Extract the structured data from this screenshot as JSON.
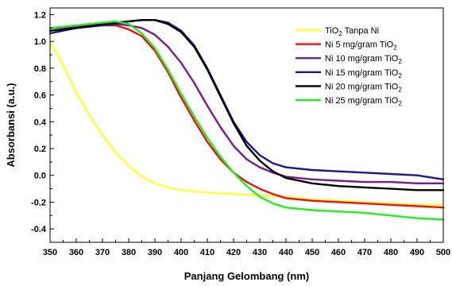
{
  "chart_data": {
    "type": "line",
    "title": "",
    "xlabel": "Panjang Gelombang (nm)",
    "ylabel": "Absorbansi (a.u.)",
    "xlim": [
      350,
      500
    ],
    "ylim": [
      -0.5,
      1.25
    ],
    "x_ticks": [
      350,
      360,
      370,
      380,
      390,
      400,
      410,
      420,
      430,
      440,
      450,
      460,
      470,
      480,
      490,
      500
    ],
    "y_ticks": [
      -0.4,
      -0.2,
      0.0,
      0.2,
      0.4,
      0.6,
      0.8,
      1.0,
      1.2
    ],
    "x_tick_labels": [
      "350",
      "360",
      "370",
      "380",
      "390",
      "400",
      "410",
      "420",
      "430",
      "440",
      "450",
      "460",
      "470",
      "480",
      "490",
      "500"
    ],
    "y_tick_labels": [
      "-0.4",
      "-0.2",
      "0.0",
      "0.2",
      "0.4",
      "0.6",
      "0.8",
      "1.0",
      "1.2"
    ],
    "grid": false,
    "legend_position": "top-right",
    "series": [
      {
        "name": "TiO₂ Tanpa Ni",
        "legend_main": "TiO",
        "legend_sub": "2",
        "legend_rest": " Tanpa Ni",
        "color": "#ffff33",
        "x": [
          350,
          353,
          356,
          360,
          365,
          370,
          375,
          380,
          385,
          390,
          395,
          400,
          410,
          420,
          430,
          440,
          450,
          460,
          470,
          480,
          490,
          500
        ],
        "y": [
          0.98,
          0.9,
          0.78,
          0.62,
          0.45,
          0.3,
          0.17,
          0.07,
          -0.01,
          -0.06,
          -0.09,
          -0.11,
          -0.13,
          -0.14,
          -0.15,
          -0.16,
          -0.18,
          -0.19,
          -0.2,
          -0.21,
          -0.22,
          -0.22
        ]
      },
      {
        "name": "Ni 5 mg/gram TiO₂",
        "legend_main": "Ni 5 mg/gram TiO",
        "legend_sub": "2",
        "legend_rest": "",
        "color": "#ee1111",
        "x": [
          350,
          360,
          370,
          375,
          380,
          385,
          390,
          395,
          400,
          405,
          410,
          415,
          420,
          425,
          430,
          435,
          440,
          450,
          460,
          470,
          480,
          490,
          500
        ],
        "y": [
          1.1,
          1.11,
          1.12,
          1.12,
          1.09,
          1.04,
          0.93,
          0.77,
          0.58,
          0.41,
          0.25,
          0.12,
          0.02,
          -0.05,
          -0.1,
          -0.14,
          -0.17,
          -0.19,
          -0.2,
          -0.21,
          -0.22,
          -0.23,
          -0.24
        ]
      },
      {
        "name": "Ni 10 mg/gram TiO₂",
        "legend_main": "Ni 10 mg/gram TiO",
        "legend_sub": "2",
        "legend_rest": "",
        "color": "#7a1a8c",
        "x": [
          350,
          360,
          370,
          375,
          380,
          385,
          390,
          395,
          400,
          405,
          410,
          415,
          420,
          425,
          430,
          435,
          440,
          450,
          460,
          470,
          480,
          490,
          500
        ],
        "y": [
          1.1,
          1.11,
          1.12,
          1.13,
          1.12,
          1.1,
          1.05,
          0.96,
          0.84,
          0.69,
          0.52,
          0.36,
          0.22,
          0.12,
          0.06,
          0.02,
          -0.01,
          -0.03,
          -0.04,
          -0.05,
          -0.05,
          -0.06,
          -0.06
        ]
      },
      {
        "name": "Ni 15 mg/gram TiO₂",
        "legend_main": "Ni 15 mg/gram TiO",
        "legend_sub": "2",
        "legend_rest": "",
        "color": "#1a1a8c",
        "x": [
          350,
          360,
          370,
          375,
          380,
          385,
          390,
          395,
          400,
          405,
          410,
          415,
          420,
          425,
          430,
          435,
          440,
          450,
          460,
          470,
          480,
          490,
          500
        ],
        "y": [
          1.06,
          1.1,
          1.12,
          1.13,
          1.15,
          1.16,
          1.16,
          1.14,
          1.08,
          0.97,
          0.8,
          0.6,
          0.4,
          0.25,
          0.15,
          0.09,
          0.06,
          0.04,
          0.03,
          0.02,
          0.01,
          0.0,
          -0.03
        ]
      },
      {
        "name": "Ni 20 mg/gram TiO₂",
        "legend_main": "Ni 20 mg/gram TiO",
        "legend_sub": "2",
        "legend_rest": "",
        "color": "#000000",
        "x": [
          350,
          360,
          370,
          375,
          380,
          385,
          390,
          395,
          400,
          405,
          410,
          415,
          420,
          425,
          430,
          435,
          440,
          450,
          460,
          470,
          480,
          490,
          500
        ],
        "y": [
          1.08,
          1.1,
          1.13,
          1.14,
          1.15,
          1.16,
          1.16,
          1.13,
          1.07,
          0.96,
          0.79,
          0.59,
          0.39,
          0.22,
          0.11,
          0.03,
          -0.02,
          -0.06,
          -0.08,
          -0.09,
          -0.1,
          -0.11,
          -0.11
        ]
      },
      {
        "name": "Ni 25 mg/gram TiO₂",
        "legend_main": "Ni 25 mg/gram TiO",
        "legend_sub": "2",
        "legend_rest": "",
        "color": "#22ee22",
        "x": [
          350,
          360,
          370,
          375,
          380,
          385,
          390,
          395,
          400,
          405,
          410,
          415,
          420,
          425,
          430,
          435,
          440,
          450,
          460,
          470,
          480,
          490,
          500
        ],
        "y": [
          1.1,
          1.12,
          1.14,
          1.15,
          1.13,
          1.06,
          0.95,
          0.79,
          0.61,
          0.44,
          0.28,
          0.14,
          0.02,
          -0.08,
          -0.16,
          -0.21,
          -0.24,
          -0.26,
          -0.27,
          -0.28,
          -0.3,
          -0.32,
          -0.33
        ]
      }
    ]
  }
}
